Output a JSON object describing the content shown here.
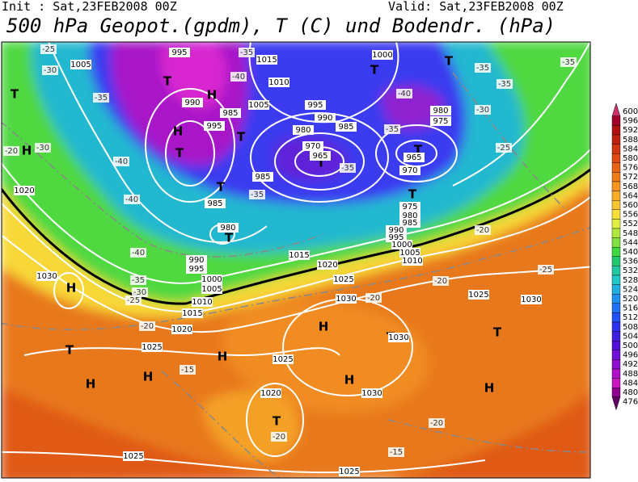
{
  "header": {
    "init": "Init : Sat,23FEB2008 00Z",
    "valid": "Valid: Sat,23FEB2008 00Z",
    "title": "500 hPa Geopot.(gpdm), T (C) und Bodendr. (hPa)"
  },
  "colorbar": {
    "items": [
      {
        "label": "600",
        "color": "#d0306a"
      },
      {
        "label": "596",
        "color": "#a00028"
      },
      {
        "label": "592",
        "color": "#b01010"
      },
      {
        "label": "588",
        "color": "#c02010"
      },
      {
        "label": "584",
        "color": "#d03810"
      },
      {
        "label": "580",
        "color": "#e04c10"
      },
      {
        "label": "576",
        "color": "#e86414"
      },
      {
        "label": "572",
        "color": "#f07c18"
      },
      {
        "label": "568",
        "color": "#f89420"
      },
      {
        "label": "564",
        "color": "#f8ac28"
      },
      {
        "label": "560",
        "color": "#f8c430"
      },
      {
        "label": "556",
        "color": "#f8e038"
      },
      {
        "label": "552",
        "color": "#e0f040"
      },
      {
        "label": "548",
        "color": "#b0e840"
      },
      {
        "label": "544",
        "color": "#80e040"
      },
      {
        "label": "540",
        "color": "#40d840"
      },
      {
        "label": "536",
        "color": "#20c870"
      },
      {
        "label": "532",
        "color": "#20c8a0"
      },
      {
        "label": "528",
        "color": "#20c8c8"
      },
      {
        "label": "524",
        "color": "#20b0e0"
      },
      {
        "label": "520",
        "color": "#2090f0"
      },
      {
        "label": "516",
        "color": "#2070f8"
      },
      {
        "label": "512",
        "color": "#2050f8"
      },
      {
        "label": "508",
        "color": "#3030f0"
      },
      {
        "label": "504",
        "color": "#4020e0"
      },
      {
        "label": "500",
        "color": "#5010d8"
      },
      {
        "label": "496",
        "color": "#7010d8"
      },
      {
        "label": "492",
        "color": "#9010d0"
      },
      {
        "label": "488",
        "color": "#b010c8"
      },
      {
        "label": "484",
        "color": "#c818c0"
      },
      {
        "label": "480",
        "color": "#900090"
      },
      {
        "label": "476",
        "color": "#600060"
      }
    ]
  },
  "centers": [
    "H",
    "H",
    "H",
    "H",
    "H",
    "H",
    "H",
    "H",
    "H",
    "H",
    "T",
    "T",
    "T",
    "T",
    "T",
    "T",
    "T",
    "T",
    "T",
    "T",
    "T",
    "T",
    "T",
    "T",
    "T"
  ],
  "isobar_labels": [
    "995",
    "1005",
    "1015",
    "1010",
    "990",
    "1000",
    "980",
    "975",
    "985",
    "995",
    "1005",
    "995",
    "990",
    "985",
    "980",
    "970",
    "965",
    "965",
    "970",
    "985",
    "985",
    "980",
    "1020",
    "1030",
    "1015",
    "1020",
    "1025",
    "1030",
    "1030",
    "1025",
    "1020",
    "1015",
    "1010",
    "1005",
    "1000",
    "995",
    "990",
    "1025",
    "1020",
    "1030",
    "1025",
    "1025",
    "1025",
    "1030",
    "975",
    "980",
    "985",
    "990",
    "995",
    "1000",
    "1005",
    "1010"
  ],
  "temp_labels": [
    "-25",
    "-30",
    "-35",
    "-20",
    "-30",
    "-40",
    "-40",
    "-40",
    "-35",
    "-30",
    "-25",
    "-20",
    "-15",
    "-20",
    "-15",
    "-20",
    "-20",
    "-20",
    "-20",
    "-25",
    "-25",
    "-30",
    "-35",
    "-35",
    "-35",
    "-40",
    "-35",
    "-35",
    "-35",
    "-35",
    "-40"
  ]
}
